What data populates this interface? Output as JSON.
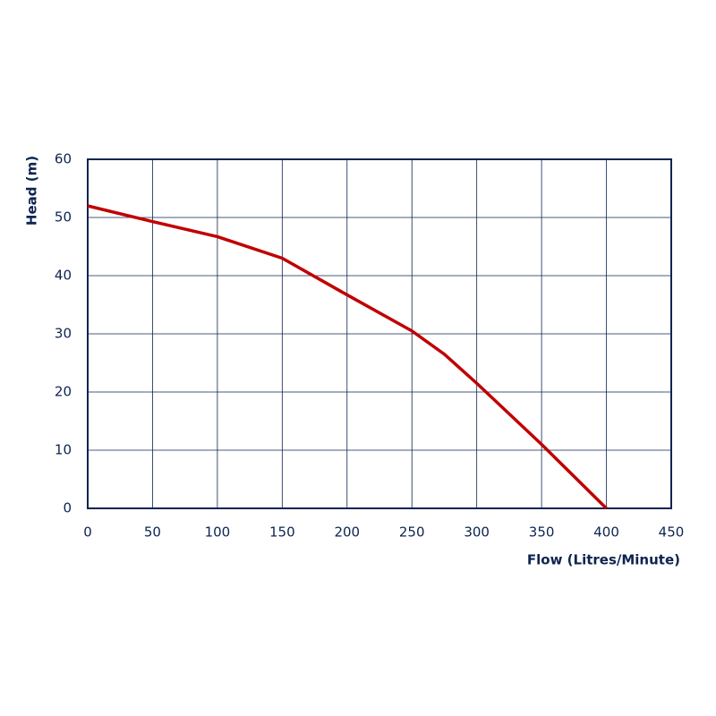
{
  "chart_data": {
    "type": "line",
    "x_label": "Flow (Litres/Minute)",
    "y_label": "Head (m)",
    "x": [
      0,
      50,
      100,
      150,
      200,
      250,
      275,
      300,
      350,
      400
    ],
    "series": [
      {
        "color": "#c00000",
        "values": [
          52,
          49.3,
          46.7,
          43,
          36.7,
          30.5,
          26.5,
          21.5,
          11,
          0
        ]
      }
    ],
    "xlim": [
      0,
      450
    ],
    "xticks": [
      0,
      50,
      100,
      150,
      200,
      250,
      300,
      350,
      400,
      450
    ],
    "ylim": [
      0,
      60
    ],
    "yticks": [
      0,
      10,
      20,
      30,
      40,
      50,
      60
    ],
    "grid": true
  }
}
